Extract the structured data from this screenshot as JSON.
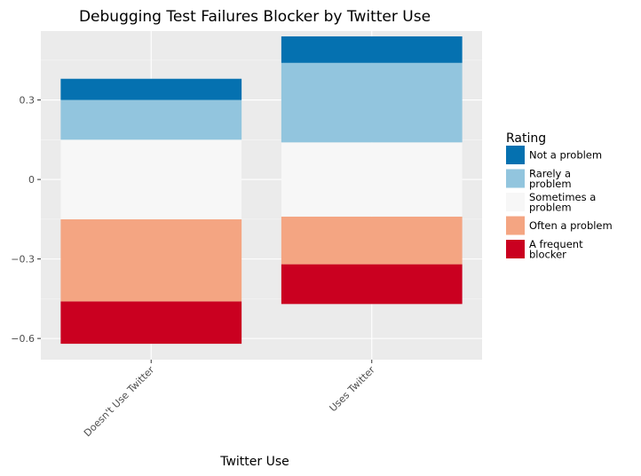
{
  "chart_data": {
    "type": "bar",
    "stacked": "diverging",
    "title": "Debugging Test Failures Blocker by Twitter Use",
    "xlabel": "Twitter Use",
    "ylabel": "",
    "categories": [
      "Doesn't Use Twitter",
      "Uses Twitter"
    ],
    "y_ticks": [
      0.3,
      0,
      -0.3,
      -0.6
    ],
    "y_tick_labels": [
      "0.3",
      "0",
      "−0.3",
      "−0.6"
    ],
    "ylim": [
      -0.68,
      0.56
    ],
    "grid": true,
    "legend": {
      "title": "Rating",
      "position": "right",
      "entries": [
        {
          "key": "not",
          "label_lines": [
            "Not a problem"
          ],
          "color": "#0571b0"
        },
        {
          "key": "rarely",
          "label_lines": [
            "Rarely a",
            "problem"
          ],
          "color": "#92c5de"
        },
        {
          "key": "sometimes",
          "label_lines": [
            "Sometimes a",
            "problem"
          ],
          "color": "#f7f7f7"
        },
        {
          "key": "often",
          "label_lines": [
            "Often a problem"
          ],
          "color": "#f4a582"
        },
        {
          "key": "frequent",
          "label_lines": [
            "A frequent",
            "blocker"
          ],
          "color": "#ca0020"
        }
      ]
    },
    "series": [
      {
        "key": "frequent",
        "color": "#ca0020",
        "ranges": [
          [
            -0.62,
            -0.46
          ],
          [
            -0.47,
            -0.32
          ]
        ]
      },
      {
        "key": "often",
        "color": "#f4a582",
        "ranges": [
          [
            -0.46,
            -0.15
          ],
          [
            -0.32,
            -0.14
          ]
        ]
      },
      {
        "key": "sometimes",
        "color": "#f7f7f7",
        "ranges": [
          [
            -0.15,
            0.15
          ],
          [
            -0.14,
            0.14
          ]
        ]
      },
      {
        "key": "rarely",
        "color": "#92c5de",
        "ranges": [
          [
            0.15,
            0.3
          ],
          [
            0.14,
            0.44
          ]
        ]
      },
      {
        "key": "not",
        "color": "#0571b0",
        "ranges": [
          [
            0.3,
            0.38
          ],
          [
            0.44,
            0.54
          ]
        ]
      }
    ],
    "colors": {
      "panel_background": "#ebebeb",
      "grid_major": "#ffffff",
      "grid_minor": "#f5f5f5",
      "tick_text": "#4d4d4d"
    }
  }
}
